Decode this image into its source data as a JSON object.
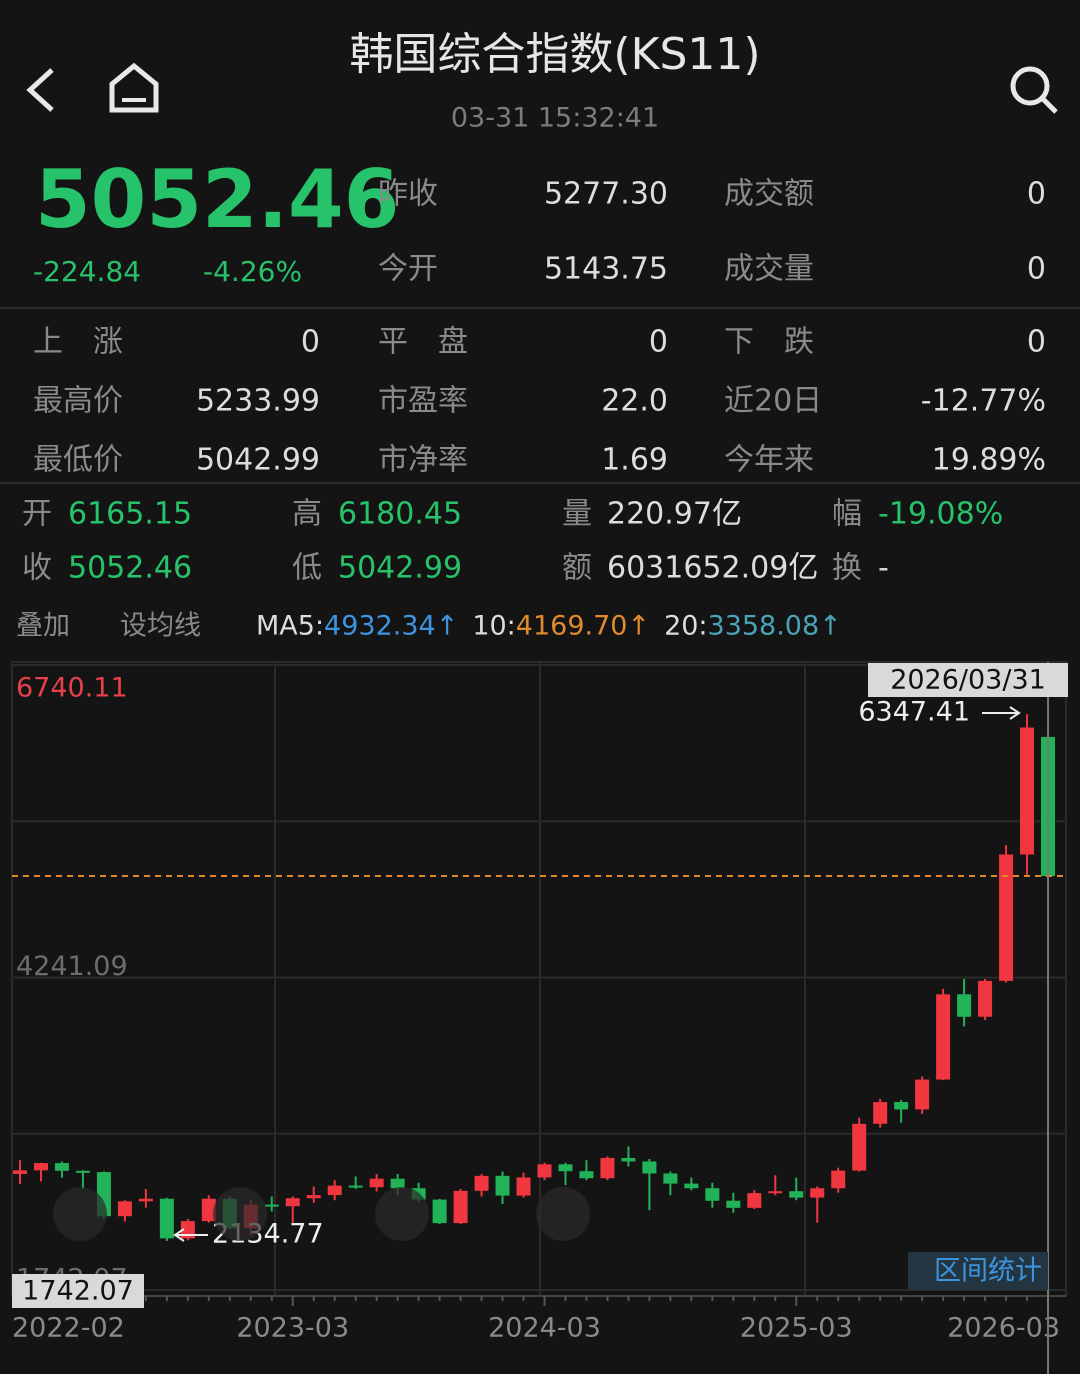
{
  "header": {
    "title": "韩国综合指数(KS11)",
    "time": "03-31 15:32:41"
  },
  "quote": {
    "price": "5052.46",
    "change": "-224.84",
    "change_pct": "-4.26%"
  },
  "stats_top": [
    [
      {
        "label": "昨收",
        "value": "5277.30"
      },
      {
        "label": "成交额",
        "value": "0"
      }
    ],
    [
      {
        "label": "今开",
        "value": "5143.75"
      },
      {
        "label": "成交量",
        "value": "0"
      }
    ]
  ],
  "stats": [
    [
      {
        "label": "上　涨",
        "value": "0"
      },
      {
        "label": "平　盘",
        "value": "0"
      },
      {
        "label": "下　跌",
        "value": "0"
      }
    ],
    [
      {
        "label": "最高价",
        "value": "5233.99"
      },
      {
        "label": "市盈率",
        "value": "22.0"
      },
      {
        "label": "近20日",
        "value": "-12.77%"
      }
    ],
    [
      {
        "label": "最低价",
        "value": "5042.99"
      },
      {
        "label": "市净率",
        "value": "1.69"
      },
      {
        "label": "今年来",
        "value": "19.89%"
      }
    ]
  ],
  "period": [
    [
      {
        "label": "开",
        "value": "6165.15",
        "color": "#27c36a"
      },
      {
        "label": "高",
        "value": "6180.45",
        "color": "#27c36a"
      },
      {
        "label": "量",
        "value": "220.97亿",
        "color": "#dddddd"
      },
      {
        "label": "幅",
        "value": "-19.08%",
        "color": "#27c36a"
      }
    ],
    [
      {
        "label": "收",
        "value": "5052.46",
        "color": "#27c36a"
      },
      {
        "label": "低",
        "value": "5042.99",
        "color": "#27c36a"
      },
      {
        "label": "额",
        "value": "6031652.09亿",
        "color": "#dddddd"
      },
      {
        "label": "换",
        "value": "-",
        "color": "#dddddd"
      }
    ]
  ],
  "overlay": {
    "add": "叠加",
    "set_ma": "设均线",
    "ma": [
      {
        "name": "MA5:",
        "value": "4932.34↑",
        "color": "#3d95e0"
      },
      {
        "name": "10:",
        "value": "4169.70↑",
        "color": "#e08a2c"
      },
      {
        "name": "20:",
        "value": "3358.08↑",
        "color": "#4aa3b5"
      }
    ]
  },
  "chart_data": {
    "type": "candlestick",
    "categories": [
      "2022-02",
      null,
      null,
      null,
      null,
      null,
      null,
      null,
      null,
      null,
      null,
      null,
      null,
      "2023-03",
      null,
      null,
      null,
      null,
      null,
      null,
      null,
      null,
      null,
      null,
      null,
      "2024-03",
      null,
      null,
      null,
      null,
      null,
      null,
      null,
      null,
      null,
      null,
      null,
      "2025-03",
      null,
      null,
      null,
      null,
      null,
      null,
      null,
      null,
      null,
      null,
      null,
      "2026-03"
    ],
    "candles": [
      [
        2670,
        2780,
        2590,
        2699
      ],
      [
        2699,
        2760,
        2610,
        2757
      ],
      [
        2757,
        2770,
        2640,
        2695
      ],
      [
        2695,
        2700,
        2550,
        2685
      ],
      [
        2685,
        2690,
        2310,
        2332
      ],
      [
        2332,
        2460,
        2290,
        2451
      ],
      [
        2451,
        2550,
        2400,
        2472
      ],
      [
        2472,
        2480,
        2134.77,
        2155
      ],
      [
        2155,
        2310,
        2140,
        2293
      ],
      [
        2293,
        2500,
        2280,
        2472
      ],
      [
        2472,
        2490,
        2230,
        2236
      ],
      [
        2236,
        2460,
        2180,
        2425
      ],
      [
        2425,
        2490,
        2370,
        2412
      ],
      [
        2412,
        2490,
        2280,
        2476
      ],
      [
        2476,
        2570,
        2440,
        2501
      ],
      [
        2501,
        2620,
        2460,
        2577
      ],
      [
        2577,
        2650,
        2550,
        2564
      ],
      [
        2564,
        2670,
        2530,
        2632
      ],
      [
        2632,
        2670,
        2500,
        2556
      ],
      [
        2556,
        2600,
        2450,
        2465
      ],
      [
        2465,
        2470,
        2270,
        2277
      ],
      [
        2277,
        2550,
        2270,
        2535
      ],
      [
        2535,
        2670,
        2490,
        2655
      ],
      [
        2655,
        2690,
        2430,
        2497
      ],
      [
        2497,
        2680,
        2480,
        2642
      ],
      [
        2642,
        2760,
        2620,
        2747
      ],
      [
        2747,
        2760,
        2580,
        2692
      ],
      [
        2692,
        2780,
        2620,
        2636
      ],
      [
        2636,
        2810,
        2620,
        2798
      ],
      [
        2798,
        2890,
        2730,
        2770
      ],
      [
        2770,
        2790,
        2380,
        2674
      ],
      [
        2674,
        2690,
        2500,
        2593
      ],
      [
        2593,
        2640,
        2540,
        2556
      ],
      [
        2556,
        2600,
        2400,
        2456
      ],
      [
        2456,
        2520,
        2360,
        2399
      ],
      [
        2399,
        2540,
        2390,
        2517
      ],
      [
        2517,
        2660,
        2500,
        2532
      ],
      [
        2532,
        2640,
        2460,
        2481
      ],
      [
        2481,
        2570,
        2280,
        2556
      ],
      [
        2556,
        2720,
        2520,
        2697
      ],
      [
        2697,
        3120,
        2690,
        3071
      ],
      [
        3071,
        3270,
        3040,
        3245
      ],
      [
        3245,
        3260,
        3080,
        3186
      ],
      [
        3186,
        3450,
        3150,
        3425
      ],
      [
        3425,
        4150,
        3420,
        4107
      ],
      [
        4107,
        4230,
        3850,
        3927
      ],
      [
        3927,
        4230,
        3900,
        4214
      ],
      [
        4214,
        5300,
        4200,
        5225
      ],
      [
        5225,
        6347.41,
        5050,
        6240
      ],
      [
        6165.15,
        6180.45,
        5042.99,
        5052.46
      ]
    ],
    "up_color": "#f0363e",
    "down_color": "#22b359",
    "last_line_color": "#e0872e",
    "ylim": [
      1742.07,
      6740.11
    ],
    "yticks": [
      1742.07,
      4241.09,
      6740.11
    ],
    "crosshair_label": "2026/03/31",
    "range_button": "区间统计"
  }
}
